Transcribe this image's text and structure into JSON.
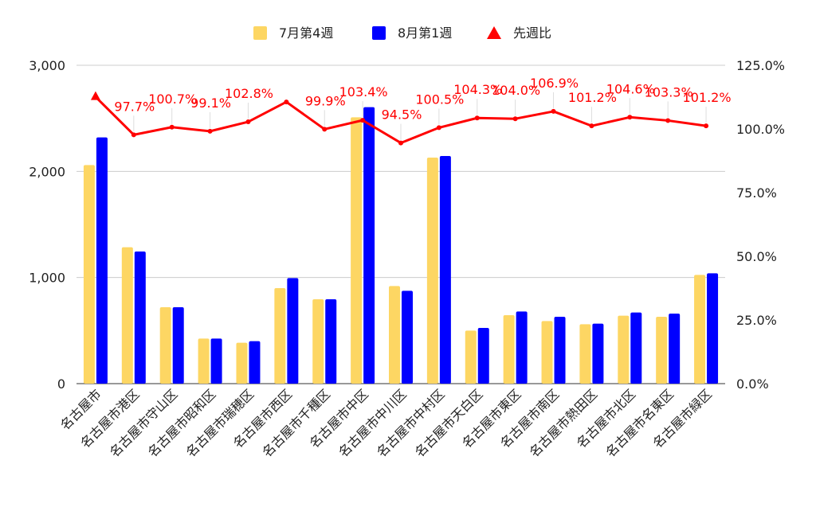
{
  "chart_data": {
    "type": "bar",
    "categories": [
      "名古屋市",
      "名古屋市港区",
      "名古屋市守山区",
      "名古屋市昭和区",
      "名古屋市瑞穂区",
      "名古屋市西区",
      "名古屋市千種区",
      "名古屋市中区",
      "名古屋市中川区",
      "名古屋市中村区",
      "名古屋市天白区",
      "名古屋市東区",
      "名古屋市南区",
      "名古屋市熱田区",
      "名古屋市北区",
      "名古屋市名東区",
      "名古屋市緑区"
    ],
    "series": [
      {
        "name": "7月第4週",
        "type": "bar",
        "axis": "left",
        "color": "#FDD663",
        "values": [
          2060,
          1285,
          720,
          425,
          385,
          900,
          795,
          2510,
          920,
          2130,
          500,
          645,
          590,
          560,
          640,
          630,
          1025
        ]
      },
      {
        "name": "8月第1週",
        "type": "bar",
        "axis": "left",
        "color": "#0000FF",
        "values": [
          2320,
          1245,
          720,
          425,
          400,
          995,
          795,
          2605,
          875,
          2145,
          525,
          680,
          630,
          565,
          670,
          660,
          1040
        ]
      },
      {
        "name": "先週比",
        "type": "line",
        "axis": "right",
        "color": "#FF0000",
        "values": [
          112.6,
          97.7,
          100.7,
          99.1,
          102.8,
          110.6,
          99.9,
          103.4,
          94.5,
          100.5,
          104.3,
          104.0,
          106.9,
          101.2,
          104.6,
          103.3,
          101.2
        ],
        "labels": [
          "",
          "97.7%",
          "100.7%",
          "99.1%",
          "102.8%",
          "",
          "99.9%",
          "103.4%",
          "94.5%",
          "100.5%",
          "104.3%",
          "104.0%",
          "106.9%",
          "101.2%",
          "104.6%",
          "103.3%",
          "101.2%"
        ]
      }
    ],
    "y_left": {
      "min": 0,
      "max": 3000,
      "ticks": [
        "0",
        "1,000",
        "2,000",
        "3,000"
      ]
    },
    "y_right": {
      "min": 0,
      "max": 125,
      "ticks": [
        "0.0%",
        "25.0%",
        "50.0%",
        "75.0%",
        "100.0%",
        "125.0%"
      ]
    },
    "legend_position": "top",
    "grid": true
  }
}
